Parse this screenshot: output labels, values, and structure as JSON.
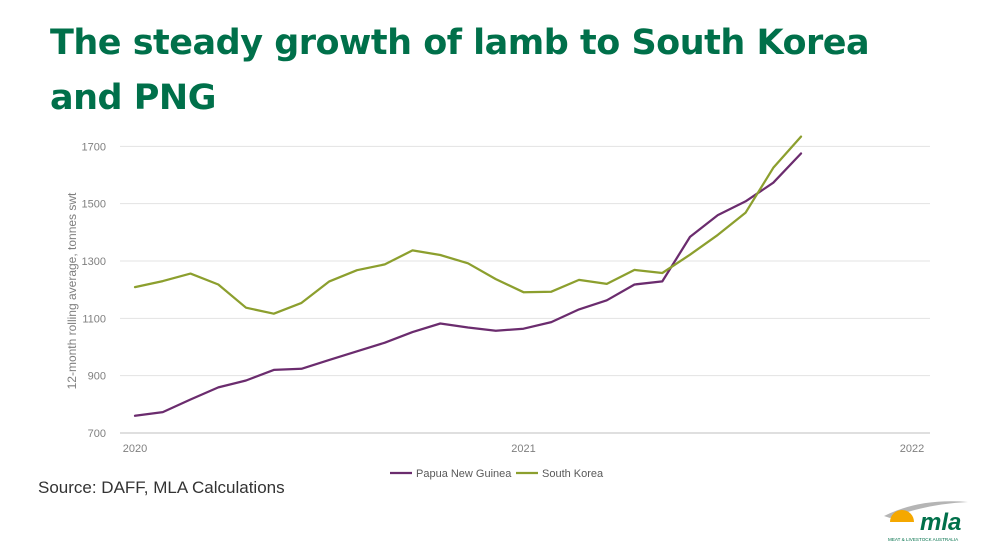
{
  "slide": {
    "title": "The steady growth of lamb to South Korea and PNG",
    "source": "Source: DAFF, MLA Calculations"
  },
  "logo": {
    "word": "mla",
    "subtitle": "MEAT & LIVESTOCK AUSTRALIA",
    "colors": {
      "green": "#00704a",
      "orange": "#f5a800",
      "grey": "#b5b5b5"
    }
  },
  "chart_data": {
    "type": "line",
    "ylabel": "12-month rolling average, tonnes swt",
    "xlabel": "",
    "ylim": [
      700,
      1750
    ],
    "yticks": [
      700,
      900,
      1100,
      1300,
      1500,
      1700
    ],
    "xticks": [
      {
        "label": "2020",
        "index": 0
      },
      {
        "label": "2021",
        "index": 14
      },
      {
        "label": "2022",
        "index": 28
      }
    ],
    "grid": true,
    "legend": "bottom-center",
    "series": [
      {
        "name": "Papua New Guinea",
        "color": "#6b2c6e",
        "values": [
          760,
          773,
          817,
          859,
          883,
          920,
          924,
          955,
          985,
          1015,
          1052,
          1082,
          1068,
          1057,
          1064,
          1087,
          1131,
          1163,
          1218,
          1229,
          1384,
          1460,
          1508,
          1573,
          1675
        ]
      },
      {
        "name": "South Korea",
        "color": "#8c9f2e",
        "values": [
          1209,
          1230,
          1256,
          1218,
          1137,
          1116,
          1154,
          1229,
          1268,
          1288,
          1337,
          1321,
          1292,
          1237,
          1191,
          1193,
          1234,
          1220,
          1269,
          1258,
          1322,
          1391,
          1468,
          1625,
          1734
        ]
      }
    ],
    "x_indices": [
      0,
      1,
      2,
      3,
      4,
      5,
      6,
      7,
      8,
      9,
      10,
      11,
      12,
      13,
      14,
      15,
      16,
      17,
      18,
      19,
      20,
      21,
      22,
      23,
      24
    ]
  }
}
